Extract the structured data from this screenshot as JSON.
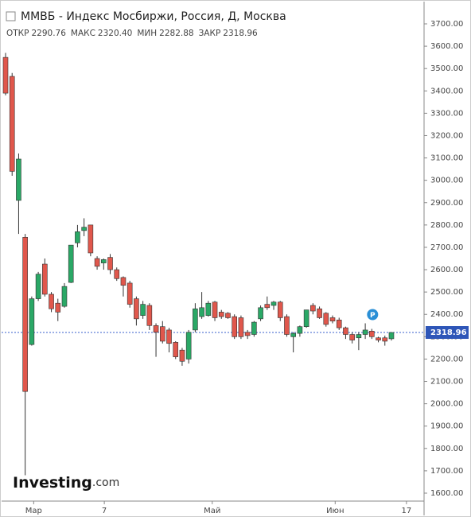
{
  "chart_data": {
    "type": "candlestick",
    "title": "ММВБ - Индекс Мосбиржи, Россия, Д, Москва",
    "info": [
      {
        "label": "ОТКР",
        "value": "2290.76"
      },
      {
        "label": "МАКС",
        "value": "2320.40"
      },
      {
        "label": "МИН",
        "value": "2282.88"
      },
      {
        "label": "ЗАКР",
        "value": "2318.96"
      }
    ],
    "up_color": "#2aa866",
    "down_color": "#e0574c",
    "open": [
      3550,
      3465,
      2910,
      2745,
      2265,
      2470,
      2625,
      2490,
      2450,
      2436,
      2543,
      2720,
      2775,
      2800,
      2650,
      2630,
      2655,
      2600,
      2565,
      2540,
      2470,
      2395,
      2440,
      2350,
      2345,
      2330,
      2275,
      2240,
      2200,
      2330,
      2390,
      2395,
      2455,
      2410,
      2405,
      2390,
      2385,
      2320,
      2310,
      2380,
      2445,
      2440,
      2455,
      2390,
      2300,
      2315,
      2345,
      2440,
      2425,
      2405,
      2385,
      2375,
      2340,
      2310,
      2295,
      2310,
      2325,
      2295,
      2295,
      2290.76
    ],
    "high": [
      3570,
      3480,
      3120,
      2760,
      2480,
      2590,
      2650,
      2500,
      2470,
      2540,
      2710,
      2800,
      2830,
      2800,
      2660,
      2650,
      2670,
      2610,
      2570,
      2550,
      2480,
      2460,
      2450,
      2360,
      2370,
      2340,
      2280,
      2250,
      2330,
      2450,
      2500,
      2460,
      2460,
      2420,
      2410,
      2400,
      2395,
      2330,
      2370,
      2440,
      2480,
      2460,
      2460,
      2400,
      2320,
      2350,
      2420,
      2450,
      2435,
      2410,
      2395,
      2385,
      2345,
      2320,
      2320,
      2360,
      2335,
      2300,
      2305,
      2320.4
    ],
    "low": [
      3380,
      3020,
      2760,
      1680,
      2260,
      2460,
      2480,
      2410,
      2370,
      2430,
      2540,
      2700,
      2750,
      2660,
      2600,
      2600,
      2580,
      2550,
      2480,
      2430,
      2350,
      2380,
      2330,
      2210,
      2270,
      2230,
      2200,
      2170,
      2180,
      2320,
      2380,
      2390,
      2370,
      2380,
      2380,
      2290,
      2290,
      2290,
      2300,
      2370,
      2420,
      2420,
      2370,
      2300,
      2230,
      2300,
      2340,
      2400,
      2380,
      2345,
      2360,
      2330,
      2290,
      2270,
      2240,
      2290,
      2290,
      2275,
      2260,
      2282.88
    ],
    "close": [
      3390,
      3040,
      3095,
      2055,
      2470,
      2580,
      2490,
      2425,
      2410,
      2525,
      2710,
      2770,
      2790,
      2675,
      2615,
      2645,
      2600,
      2560,
      2530,
      2445,
      2380,
      2445,
      2350,
      2320,
      2280,
      2270,
      2210,
      2190,
      2320,
      2425,
      2430,
      2450,
      2385,
      2390,
      2385,
      2300,
      2300,
      2305,
      2365,
      2430,
      2430,
      2455,
      2385,
      2310,
      2315,
      2345,
      2420,
      2415,
      2385,
      2355,
      2370,
      2340,
      2310,
      2285,
      2310,
      2330,
      2300,
      2285,
      2280,
      2318.96
    ],
    "ylim": [
      1600,
      3700
    ],
    "yticks": [
      {
        "value": 1600,
        "label": "1600.00"
      },
      {
        "value": 1700,
        "label": "1700.00"
      },
      {
        "value": 1800,
        "label": "1800.00"
      },
      {
        "value": 1900,
        "label": "1900.00"
      },
      {
        "value": 2000,
        "label": "2000.00"
      },
      {
        "value": 2100,
        "label": "2100.00"
      },
      {
        "value": 2200,
        "label": "2200.00"
      },
      {
        "value": 2300,
        "label": "2300.00"
      },
      {
        "value": 2400,
        "label": "2400.00"
      },
      {
        "value": 2500,
        "label": "2500.00"
      },
      {
        "value": 2600,
        "label": "2600.00"
      },
      {
        "value": 2700,
        "label": "2700.00"
      },
      {
        "value": 2800,
        "label": "2800.00"
      },
      {
        "value": 2900,
        "label": "2900.00"
      },
      {
        "value": 3000,
        "label": "3000.00"
      },
      {
        "value": 3100,
        "label": "3100.00"
      },
      {
        "value": 3200,
        "label": "3200.00"
      },
      {
        "value": 3300,
        "label": "3300.00"
      },
      {
        "value": 3400,
        "label": "3400.00"
      },
      {
        "value": 3500,
        "label": "3500.00"
      },
      {
        "value": 3600,
        "label": "3600.00"
      },
      {
        "value": 3700,
        "label": "3700.00"
      }
    ],
    "xticks": [
      {
        "value": 4.3,
        "label": "Мар"
      },
      {
        "value": 15.1,
        "label": "7"
      },
      {
        "value": 31.6,
        "label": "Май"
      },
      {
        "value": 50.4,
        "label": "Июн"
      },
      {
        "value": 61.3,
        "label": "17"
      }
    ],
    "last_price": {
      "value": 2318.96,
      "label": "2318.96"
    },
    "marker": "P",
    "logo": {
      "main": "Investing",
      "suffix": ".com"
    }
  }
}
